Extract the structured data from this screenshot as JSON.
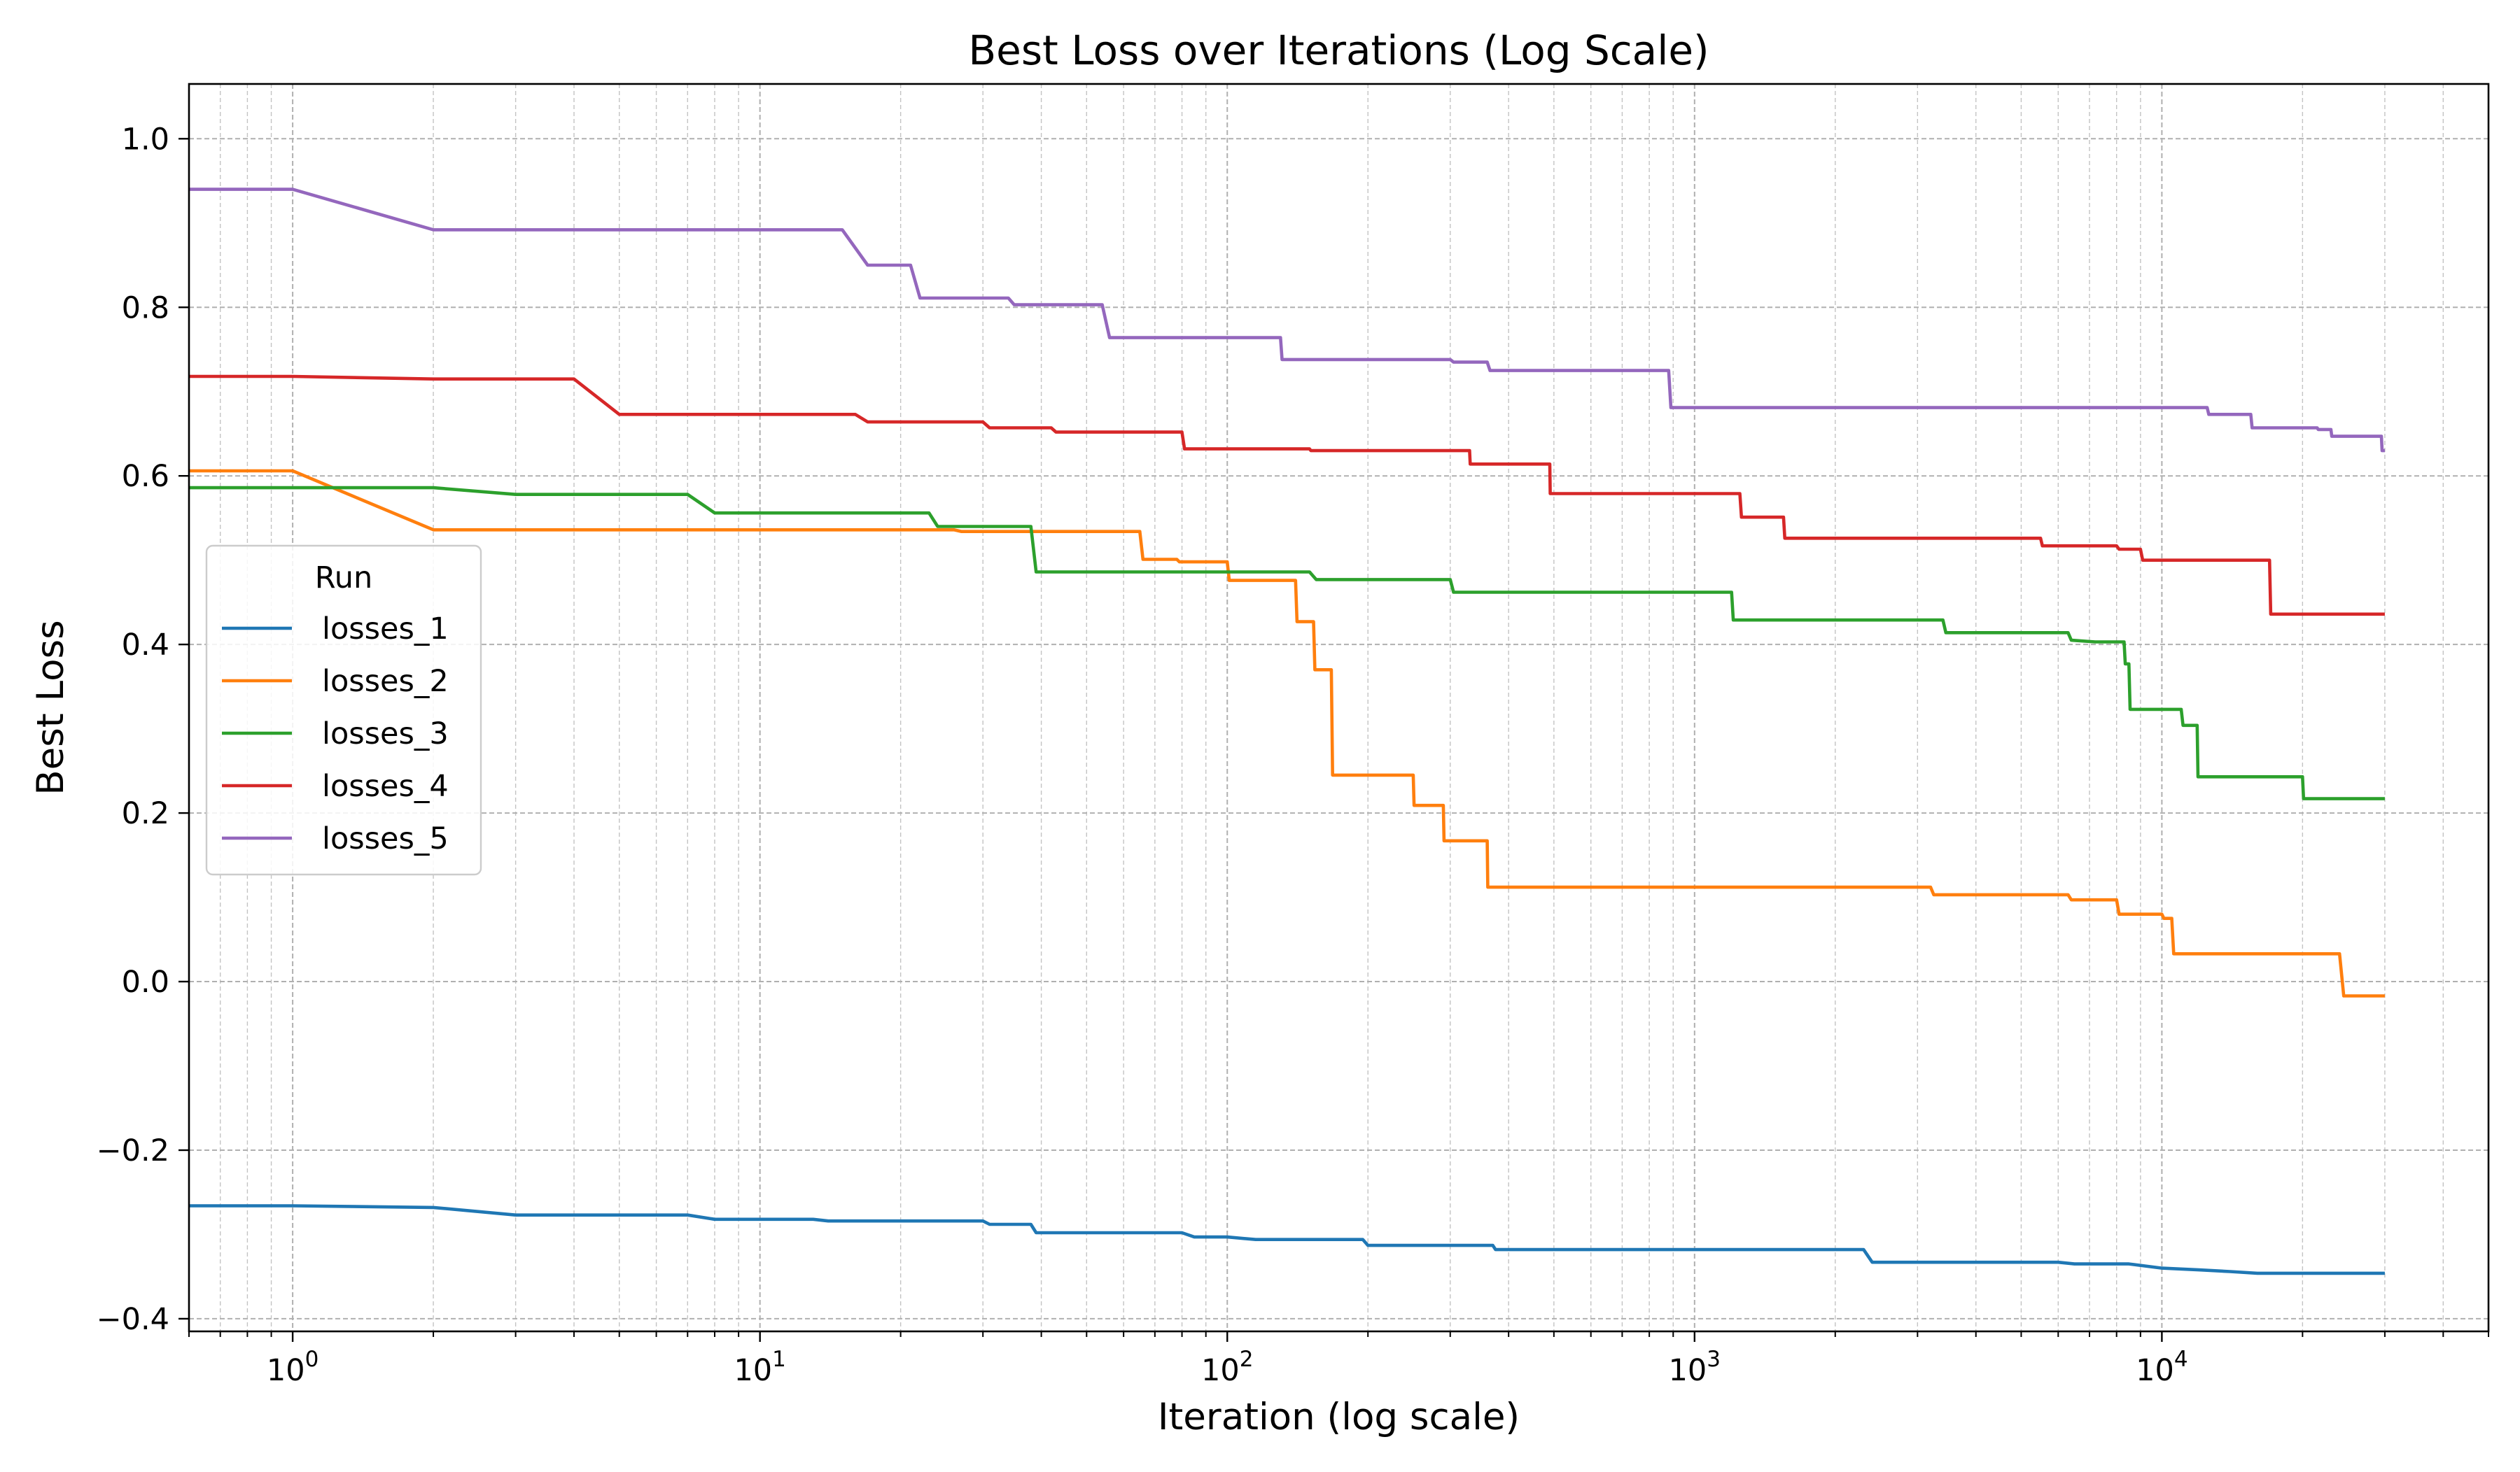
{
  "chart_data": {
    "type": "line",
    "title": "Best Loss over Iterations (Log Scale)",
    "xlabel": "Iteration (log scale)",
    "ylabel": "Best Loss",
    "xscale": "log",
    "xlim": [
      0.6,
      50000
    ],
    "ylim": [
      -0.415,
      1.065
    ],
    "grid": true,
    "legend": {
      "title": "Run",
      "placement": "center-left"
    },
    "x_ticks": [
      {
        "value": 1,
        "base": "10",
        "exp": "0"
      },
      {
        "value": 10,
        "base": "10",
        "exp": "1"
      },
      {
        "value": 100,
        "base": "10",
        "exp": "2"
      },
      {
        "value": 1000,
        "base": "10",
        "exp": "3"
      },
      {
        "value": 10000,
        "base": "10",
        "exp": "4"
      }
    ],
    "y_ticks": [
      {
        "value": 1.0,
        "label": "1.0"
      },
      {
        "value": 0.8,
        "label": "0.8"
      },
      {
        "value": 0.6,
        "label": "0.6"
      },
      {
        "value": 0.4,
        "label": "0.4"
      },
      {
        "value": 0.2,
        "label": "0.2"
      },
      {
        "value": 0.0,
        "label": "0.0"
      },
      {
        "value": -0.2,
        "label": "−0.2"
      },
      {
        "value": -0.4,
        "label": "−0.4"
      }
    ],
    "series": [
      {
        "name": "losses_1",
        "color": "#1f77b4",
        "points": [
          [
            0.6,
            -0.266
          ],
          [
            1,
            -0.266
          ],
          [
            2,
            -0.268
          ],
          [
            3,
            -0.277
          ],
          [
            7,
            -0.277
          ],
          [
            8,
            -0.282
          ],
          [
            13,
            -0.282
          ],
          [
            14,
            -0.284
          ],
          [
            30,
            -0.284
          ],
          [
            31,
            -0.288
          ],
          [
            38,
            -0.288
          ],
          [
            39,
            -0.298
          ],
          [
            80,
            -0.298
          ],
          [
            85,
            -0.303
          ],
          [
            100,
            -0.303
          ],
          [
            115,
            -0.306
          ],
          [
            195,
            -0.306
          ],
          [
            200,
            -0.313
          ],
          [
            370,
            -0.313
          ],
          [
            375,
            -0.318
          ],
          [
            2300,
            -0.318
          ],
          [
            2400,
            -0.333
          ],
          [
            6000,
            -0.333
          ],
          [
            6500,
            -0.335
          ],
          [
            8500,
            -0.335
          ],
          [
            10000,
            -0.34
          ],
          [
            12000,
            -0.342
          ],
          [
            14000,
            -0.344
          ],
          [
            16000,
            -0.346
          ],
          [
            30000,
            -0.346
          ]
        ]
      },
      {
        "name": "losses_2",
        "color": "#ff7f0e",
        "points": [
          [
            0.6,
            0.606
          ],
          [
            1,
            0.606
          ],
          [
            2,
            0.536
          ],
          [
            26,
            0.536
          ],
          [
            27,
            0.534
          ],
          [
            65,
            0.534
          ],
          [
            66,
            0.501
          ],
          [
            78,
            0.501
          ],
          [
            79,
            0.498
          ],
          [
            100,
            0.498
          ],
          [
            101,
            0.476
          ],
          [
            140,
            0.476
          ],
          [
            141,
            0.427
          ],
          [
            153,
            0.427
          ],
          [
            154,
            0.37
          ],
          [
            167,
            0.37
          ],
          [
            168,
            0.245
          ],
          [
            250,
            0.245
          ],
          [
            251,
            0.209
          ],
          [
            290,
            0.209
          ],
          [
            291,
            0.167
          ],
          [
            360,
            0.167
          ],
          [
            361,
            0.112
          ],
          [
            3200,
            0.112
          ],
          [
            3250,
            0.103
          ],
          [
            6300,
            0.103
          ],
          [
            6400,
            0.097
          ],
          [
            8000,
            0.097
          ],
          [
            8100,
            0.08
          ],
          [
            10000,
            0.08
          ],
          [
            10100,
            0.075
          ],
          [
            10500,
            0.075
          ],
          [
            10600,
            0.033
          ],
          [
            24000,
            0.033
          ],
          [
            24500,
            -0.017
          ],
          [
            30000,
            -0.017
          ]
        ]
      },
      {
        "name": "losses_3",
        "color": "#2ca02c",
        "points": [
          [
            0.6,
            0.586
          ],
          [
            1,
            0.586
          ],
          [
            2,
            0.586
          ],
          [
            3,
            0.578
          ],
          [
            7,
            0.578
          ],
          [
            8,
            0.556
          ],
          [
            23,
            0.556
          ],
          [
            24,
            0.54
          ],
          [
            38,
            0.54
          ],
          [
            39,
            0.486
          ],
          [
            150,
            0.486
          ],
          [
            155,
            0.477
          ],
          [
            300,
            0.477
          ],
          [
            305,
            0.462
          ],
          [
            1200,
            0.462
          ],
          [
            1210,
            0.429
          ],
          [
            3400,
            0.429
          ],
          [
            3450,
            0.414
          ],
          [
            6300,
            0.414
          ],
          [
            6400,
            0.405
          ],
          [
            7200,
            0.403
          ],
          [
            8300,
            0.403
          ],
          [
            8350,
            0.377
          ],
          [
            8500,
            0.377
          ],
          [
            8550,
            0.323
          ],
          [
            11000,
            0.323
          ],
          [
            11100,
            0.304
          ],
          [
            11900,
            0.304
          ],
          [
            11950,
            0.243
          ],
          [
            20000,
            0.243
          ],
          [
            20100,
            0.217
          ],
          [
            30000,
            0.217
          ]
        ]
      },
      {
        "name": "losses_4",
        "color": "#d62728",
        "points": [
          [
            0.6,
            0.718
          ],
          [
            1,
            0.718
          ],
          [
            2,
            0.715
          ],
          [
            4,
            0.715
          ],
          [
            5,
            0.673
          ],
          [
            16,
            0.673
          ],
          [
            17,
            0.664
          ],
          [
            30,
            0.664
          ],
          [
            31,
            0.657
          ],
          [
            42,
            0.657
          ],
          [
            43,
            0.652
          ],
          [
            80,
            0.652
          ],
          [
            81,
            0.632
          ],
          [
            150,
            0.632
          ],
          [
            151,
            0.63
          ],
          [
            330,
            0.63
          ],
          [
            331,
            0.614
          ],
          [
            490,
            0.614
          ],
          [
            491,
            0.579
          ],
          [
            1250,
            0.579
          ],
          [
            1260,
            0.551
          ],
          [
            1550,
            0.551
          ],
          [
            1560,
            0.526
          ],
          [
            5500,
            0.526
          ],
          [
            5550,
            0.517
          ],
          [
            8000,
            0.517
          ],
          [
            8100,
            0.513
          ],
          [
            9000,
            0.513
          ],
          [
            9100,
            0.5
          ],
          [
            17000,
            0.5
          ],
          [
            17100,
            0.436
          ],
          [
            30000,
            0.436
          ]
        ]
      },
      {
        "name": "losses_5",
        "color": "#9467bd",
        "points": [
          [
            0.6,
            0.94
          ],
          [
            1,
            0.94
          ],
          [
            2,
            0.892
          ],
          [
            15,
            0.892
          ],
          [
            17,
            0.85
          ],
          [
            21,
            0.85
          ],
          [
            22,
            0.811
          ],
          [
            34,
            0.811
          ],
          [
            35,
            0.803
          ],
          [
            54,
            0.803
          ],
          [
            56,
            0.764
          ],
          [
            130,
            0.764
          ],
          [
            131,
            0.738
          ],
          [
            300,
            0.738
          ],
          [
            305,
            0.735
          ],
          [
            360,
            0.735
          ],
          [
            365,
            0.725
          ],
          [
            880,
            0.725
          ],
          [
            890,
            0.681
          ],
          [
            12500,
            0.681
          ],
          [
            12600,
            0.673
          ],
          [
            15500,
            0.673
          ],
          [
            15600,
            0.657
          ],
          [
            21500,
            0.657
          ],
          [
            21600,
            0.655
          ],
          [
            23000,
            0.655
          ],
          [
            23100,
            0.647
          ],
          [
            29500,
            0.647
          ],
          [
            29600,
            0.63
          ],
          [
            30000,
            0.63
          ]
        ]
      }
    ]
  }
}
